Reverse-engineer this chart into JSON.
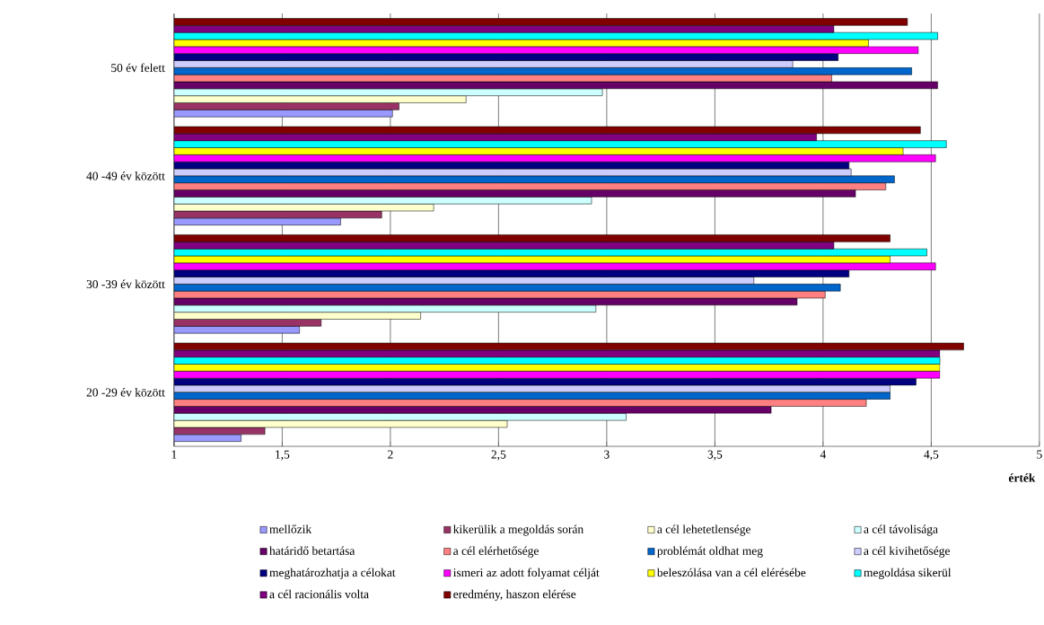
{
  "chart_data": {
    "type": "bar",
    "orientation": "horizontal",
    "xlabel": "érték",
    "categories": [
      "50 év felett",
      "40 -49 év között",
      "30 -39 év között",
      "20 -29 év között"
    ],
    "xlim": [
      1,
      5
    ],
    "xticks": [
      1,
      {
        "value": 1.5,
        "label": "1,5"
      },
      2,
      {
        "value": 2.5,
        "label": "2,5"
      },
      3,
      {
        "value": 3.5,
        "label": "3,5"
      },
      4,
      {
        "value": 4.5,
        "label": "4,5"
      },
      5
    ],
    "grid": "x",
    "legend": "bottom",
    "series": [
      {
        "name": "mellőzik",
        "color": "#9999ff",
        "values": [
          2.01,
          1.77,
          1.58,
          1.31
        ]
      },
      {
        "name": "kikerülik a megoldás során",
        "color": "#993366",
        "values": [
          2.04,
          1.96,
          1.68,
          1.42
        ]
      },
      {
        "name": "a cél lehetetlensége",
        "color": "#ffffcc",
        "values": [
          2.35,
          2.2,
          2.14,
          2.54
        ]
      },
      {
        "name": "a cél távolisága",
        "color": "#ccffff",
        "values": [
          2.98,
          2.93,
          2.95,
          3.09
        ]
      },
      {
        "name": "határidő betartása",
        "color": "#660066",
        "values": [
          4.53,
          4.15,
          3.88,
          3.76
        ]
      },
      {
        "name": "a cél elérhetősége",
        "color": "#ff8080",
        "values": [
          4.04,
          4.29,
          4.01,
          4.2
        ]
      },
      {
        "name": "problémát oldhat meg",
        "color": "#0066cc",
        "values": [
          4.41,
          4.33,
          4.08,
          4.31
        ]
      },
      {
        "name": "a cél kivihetősége",
        "color": "#ccccff",
        "values": [
          3.86,
          4.13,
          3.68,
          4.31
        ]
      },
      {
        "name": "meghatározhatja a célokat",
        "color": "#000080",
        "values": [
          4.07,
          4.12,
          4.12,
          4.43
        ]
      },
      {
        "name": "ismeri az adott folyamat célját",
        "color": "#ff00ff",
        "values": [
          4.44,
          4.52,
          4.52,
          4.54
        ]
      },
      {
        "name": "beleszólása van a cél elérésébe",
        "color": "#ffff00",
        "values": [
          4.21,
          4.37,
          4.31,
          4.54
        ]
      },
      {
        "name": "megoldása sikerül",
        "color": "#00ffff",
        "values": [
          4.53,
          4.57,
          4.48,
          4.54
        ]
      },
      {
        "name": "a cél racionális volta",
        "color": "#800080",
        "values": [
          4.05,
          3.97,
          4.05,
          4.54
        ]
      },
      {
        "name": "eredmény, haszon elérése",
        "color": "#800000",
        "values": [
          4.39,
          4.45,
          4.31,
          4.65
        ]
      }
    ]
  }
}
